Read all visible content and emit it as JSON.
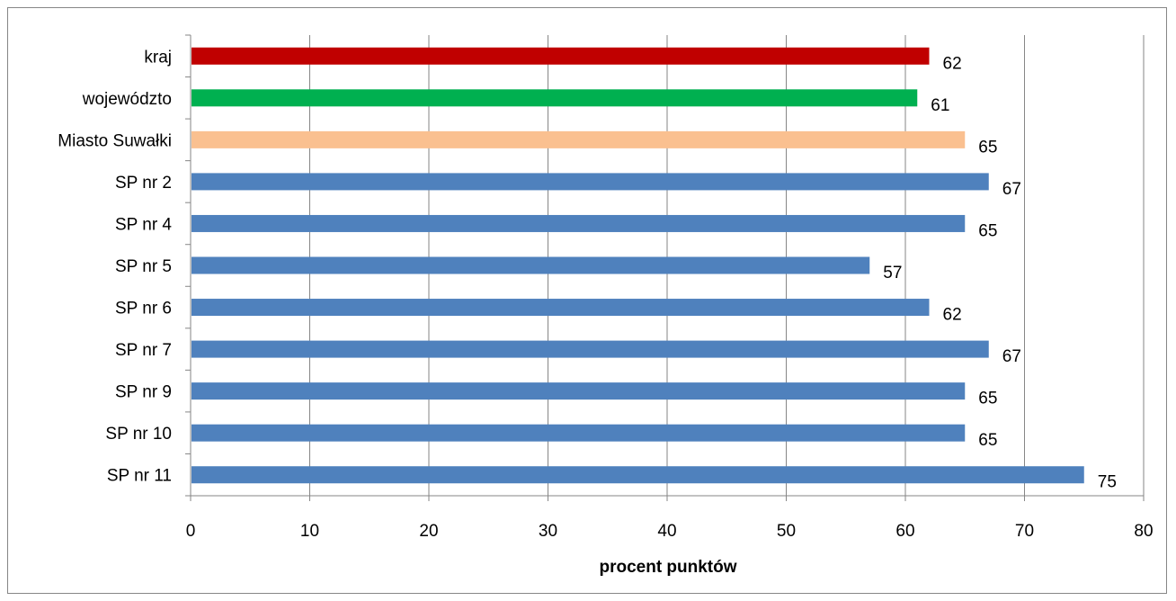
{
  "chart_data": {
    "type": "bar",
    "orientation": "horizontal",
    "categories": [
      "kraj",
      "województo",
      "Miasto Suwałki",
      "SP nr 2",
      "SP nr 4",
      "SP nr 5",
      "SP nr 6",
      "SP nr 7",
      "SP nr 9",
      "SP nr 10",
      "SP nr 11"
    ],
    "values": [
      62,
      61,
      65,
      67,
      65,
      57,
      62,
      67,
      65,
      65,
      75
    ],
    "colors": [
      "#c00000",
      "#00b050",
      "#fac090",
      "#4f81bd",
      "#4f81bd",
      "#4f81bd",
      "#4f81bd",
      "#4f81bd",
      "#4f81bd",
      "#4f81bd",
      "#4f81bd"
    ],
    "xlabel": "procent punktów",
    "ylabel": "",
    "xlim": [
      0,
      80
    ],
    "xticks": [
      0,
      10,
      20,
      30,
      40,
      50,
      60,
      70,
      80
    ],
    "grid": true,
    "data_labels": true
  }
}
